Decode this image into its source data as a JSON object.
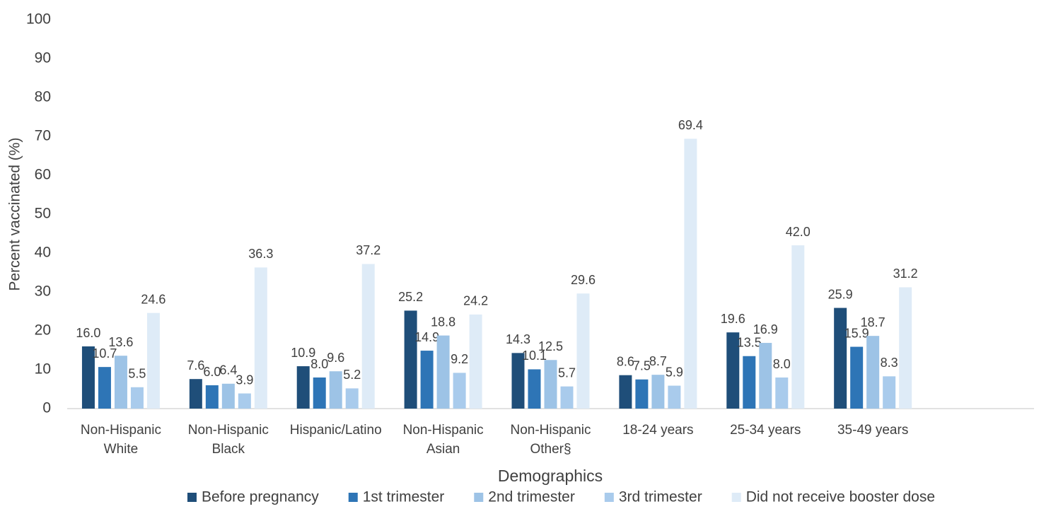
{
  "chart_data": {
    "type": "bar",
    "y_axis_label": "Percent vaccinated (%)",
    "x_axis_label": "Demographics",
    "categories": [
      "Non-Hispanic\nWhite",
      "Non-Hispanic\nBlack",
      "Hispanic/Latino",
      "Non-Hispanic\nAsian",
      "Non-Hispanic\nOther§",
      "18-24 years",
      "25-34 years",
      "35-49 years",
      null
    ],
    "series": [
      {
        "name": "Before pregnancy",
        "color": "#1f4e79",
        "values": [
          16.0,
          7.6,
          10.9,
          25.2,
          14.3,
          8.6,
          19.6,
          25.9,
          null
        ],
        "value_labels": [
          "16.0",
          "7.6",
          "10.9",
          "25.2",
          "14.3",
          "8.6",
          "19.6",
          "25.9",
          null
        ]
      },
      {
        "name": "1st trimester",
        "color": "#2e75b6",
        "values": [
          10.7,
          6.0,
          8.0,
          14.9,
          10.1,
          7.5,
          13.5,
          15.9,
          null
        ],
        "value_labels": [
          "10.7",
          "6.0",
          "8.0",
          "14.9",
          "10.1",
          "7.5",
          "13.5",
          "15.9",
          null
        ]
      },
      {
        "name": "2nd trimester",
        "color": "#9dc3e6",
        "values": [
          13.6,
          6.4,
          9.6,
          18.8,
          12.5,
          8.7,
          16.9,
          18.7,
          null
        ],
        "value_labels": [
          "13.6",
          "6.4",
          "9.6",
          "18.8",
          "12.5",
          "8.7",
          "16.9",
          "18.7",
          null
        ]
      },
      {
        "name": "3rd trimester",
        "color": "#a9cbec",
        "values": [
          5.5,
          3.9,
          5.2,
          9.2,
          5.7,
          5.9,
          8.0,
          8.3,
          null
        ],
        "value_labels": [
          "5.5",
          "3.9",
          "5.2",
          "9.2",
          "5.7",
          "5.9",
          "8.0",
          "8.3",
          null
        ]
      },
      {
        "name": "Did not receive booster dose",
        "color": "#deebf7",
        "values": [
          24.6,
          36.3,
          37.2,
          24.2,
          29.6,
          69.4,
          42.0,
          31.2,
          null
        ],
        "value_labels": [
          "24.6",
          "36.3",
          "37.2",
          "24.2",
          "29.6",
          "69.4",
          "42.0",
          "31.2",
          null
        ]
      }
    ],
    "ylim": [
      0,
      100
    ],
    "yticks": [
      0,
      10,
      20,
      30,
      40,
      50,
      60,
      70,
      80,
      90,
      100
    ],
    "grid": false,
    "legend": "bottom"
  }
}
